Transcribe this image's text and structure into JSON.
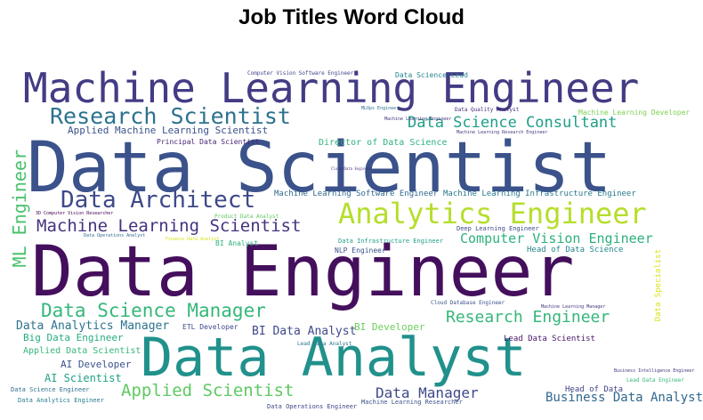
{
  "title": "Job Titles Word Cloud",
  "chart_data": {
    "type": "wordcloud",
    "title": "Job Titles Word Cloud",
    "words": [
      {
        "text": "Data Scientist",
        "color": "#3b528b"
      },
      {
        "text": "Data Engineer",
        "color": "#440f5c"
      },
      {
        "text": "Data Analyst",
        "color": "#21918c"
      },
      {
        "text": "Machine Learning Engineer",
        "color": "#433c84"
      },
      {
        "text": "Research Scientist",
        "color": "#2c728e"
      },
      {
        "text": "Analytics Engineer",
        "color": "#b5de2b"
      },
      {
        "text": "Data Architect",
        "color": "#3e4989"
      },
      {
        "text": "Machine Learning Scientist",
        "color": "#46327e"
      },
      {
        "text": "Data Science Manager",
        "color": "#35b779"
      },
      {
        "text": "Data Science Consultant",
        "color": "#1f9e89"
      },
      {
        "text": "Applied Scientist",
        "color": "#5ec962"
      },
      {
        "text": "Research Engineer",
        "color": "#35b779"
      },
      {
        "text": "Computer Vision Engineer",
        "color": "#2db27d"
      },
      {
        "text": "ML Engineer",
        "color": "#4ac16d"
      },
      {
        "text": "Data Manager",
        "color": "#3e4989"
      },
      {
        "text": "Business Data Analyst",
        "color": "#31688e"
      },
      {
        "text": "Data Analytics Manager",
        "color": "#2c728e"
      },
      {
        "text": "BI Data Analyst",
        "color": "#3e4989"
      },
      {
        "text": "Applied Machine Learning Scientist",
        "color": "#3b528b"
      },
      {
        "text": "Director of Data Science",
        "color": "#2db27d"
      },
      {
        "text": "Big Data Engineer",
        "color": "#26ad81"
      },
      {
        "text": "AI Scientist",
        "color": "#20a386"
      },
      {
        "text": "Data Specialist",
        "color": "#d8e219"
      },
      {
        "text": "Principal Data Scientist",
        "color": "#482475"
      },
      {
        "text": "Applied Data Scientist",
        "color": "#35b779"
      },
      {
        "text": "AI Developer",
        "color": "#3b528b"
      },
      {
        "text": "BI Developer",
        "color": "#6ccd5a"
      },
      {
        "text": "Head of Data",
        "color": "#404688"
      },
      {
        "text": "Machine Learning Software Engineer",
        "color": "#31688e"
      },
      {
        "text": "Machine Learning Infrastructure Engineer",
        "color": "#2a788e"
      },
      {
        "text": "Head of Data Science",
        "color": "#25858e"
      },
      {
        "text": "Lead Data Scientist",
        "color": "#481668"
      },
      {
        "text": "Machine Learning Developer",
        "color": "#7ad151"
      },
      {
        "text": "Deep Learning Engineer",
        "color": "#3e4989"
      },
      {
        "text": "NLP Engineer",
        "color": "#3b528b"
      },
      {
        "text": "Data Infrastructure Engineer",
        "color": "#1f9e89"
      },
      {
        "text": "ETL Developer",
        "color": "#3e4989"
      },
      {
        "text": "Data Science Lead",
        "color": "#25858e"
      },
      {
        "text": "Computer Vision Software Engineer",
        "color": "#414487"
      },
      {
        "text": "Data Quality Analyst",
        "color": "#472d7b"
      },
      {
        "text": "Machine Learning Manager",
        "color": "#46327e"
      },
      {
        "text": "Machine Learning Research Engineer",
        "color": "#453781"
      },
      {
        "text": "MLOps Engineer",
        "color": "#2c728e"
      },
      {
        "text": "Data Science Engineer",
        "color": "#2c728e"
      },
      {
        "text": "Data Analytics Engineer",
        "color": "#287d8e"
      },
      {
        "text": "Data Operations Engineer",
        "color": "#3e4989"
      },
      {
        "text": "Machine Learning Researcher",
        "color": "#3b528b"
      },
      {
        "text": "Business Intelligence Engineer",
        "color": "#46327e"
      },
      {
        "text": "Lead Data Engineer",
        "color": "#35b779"
      },
      {
        "text": "Cloud Database Engineer",
        "color": "#3b528b"
      },
      {
        "text": "Lead Data Analyst",
        "color": "#2a788e"
      },
      {
        "text": "Product Data Analyst",
        "color": "#5ec962"
      },
      {
        "text": "Finance Data Analyst",
        "color": "#d8e219"
      },
      {
        "text": "Data Operations Analyst",
        "color": "#31688e"
      },
      {
        "text": "Machine Learning Engineer",
        "color": "#46327e"
      },
      {
        "text": "3D Computer Vision Researcher",
        "color": "#440154"
      },
      {
        "text": "Cloud Data Engineer",
        "color": "#46327e"
      },
      {
        "text": "BI Analyst",
        "color": "#2db27d"
      }
    ]
  }
}
